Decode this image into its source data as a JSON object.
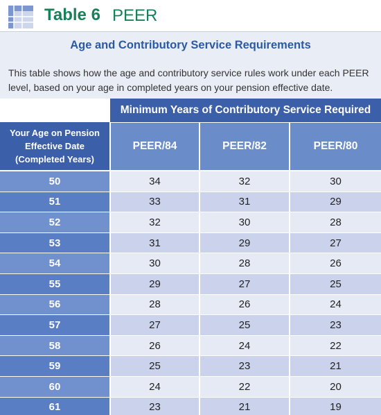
{
  "header": {
    "title": "Table 6",
    "subtitle": "PEER"
  },
  "section_title": "Age and Contributory Service Requirements",
  "description": "This table shows how the age and contributory service rules work under each PEER level, based on your age in completed years on your pension effective date.",
  "table": {
    "group_header": "Minimum Years of Contributory Service Required",
    "columns": [
      "Your Age on Pension Effective Date (Completed Years)",
      "PEER/84",
      "PEER/82",
      "PEER/80"
    ],
    "rows": [
      [
        50,
        34,
        32,
        30
      ],
      [
        51,
        33,
        31,
        29
      ],
      [
        52,
        32,
        30,
        28
      ],
      [
        53,
        31,
        29,
        27
      ],
      [
        54,
        30,
        28,
        26
      ],
      [
        55,
        29,
        27,
        25
      ],
      [
        56,
        28,
        26,
        24
      ],
      [
        57,
        27,
        25,
        23
      ],
      [
        58,
        26,
        24,
        22
      ],
      [
        59,
        25,
        23,
        21
      ],
      [
        60,
        24,
        22,
        20
      ],
      [
        61,
        23,
        21,
        19
      ]
    ]
  }
}
